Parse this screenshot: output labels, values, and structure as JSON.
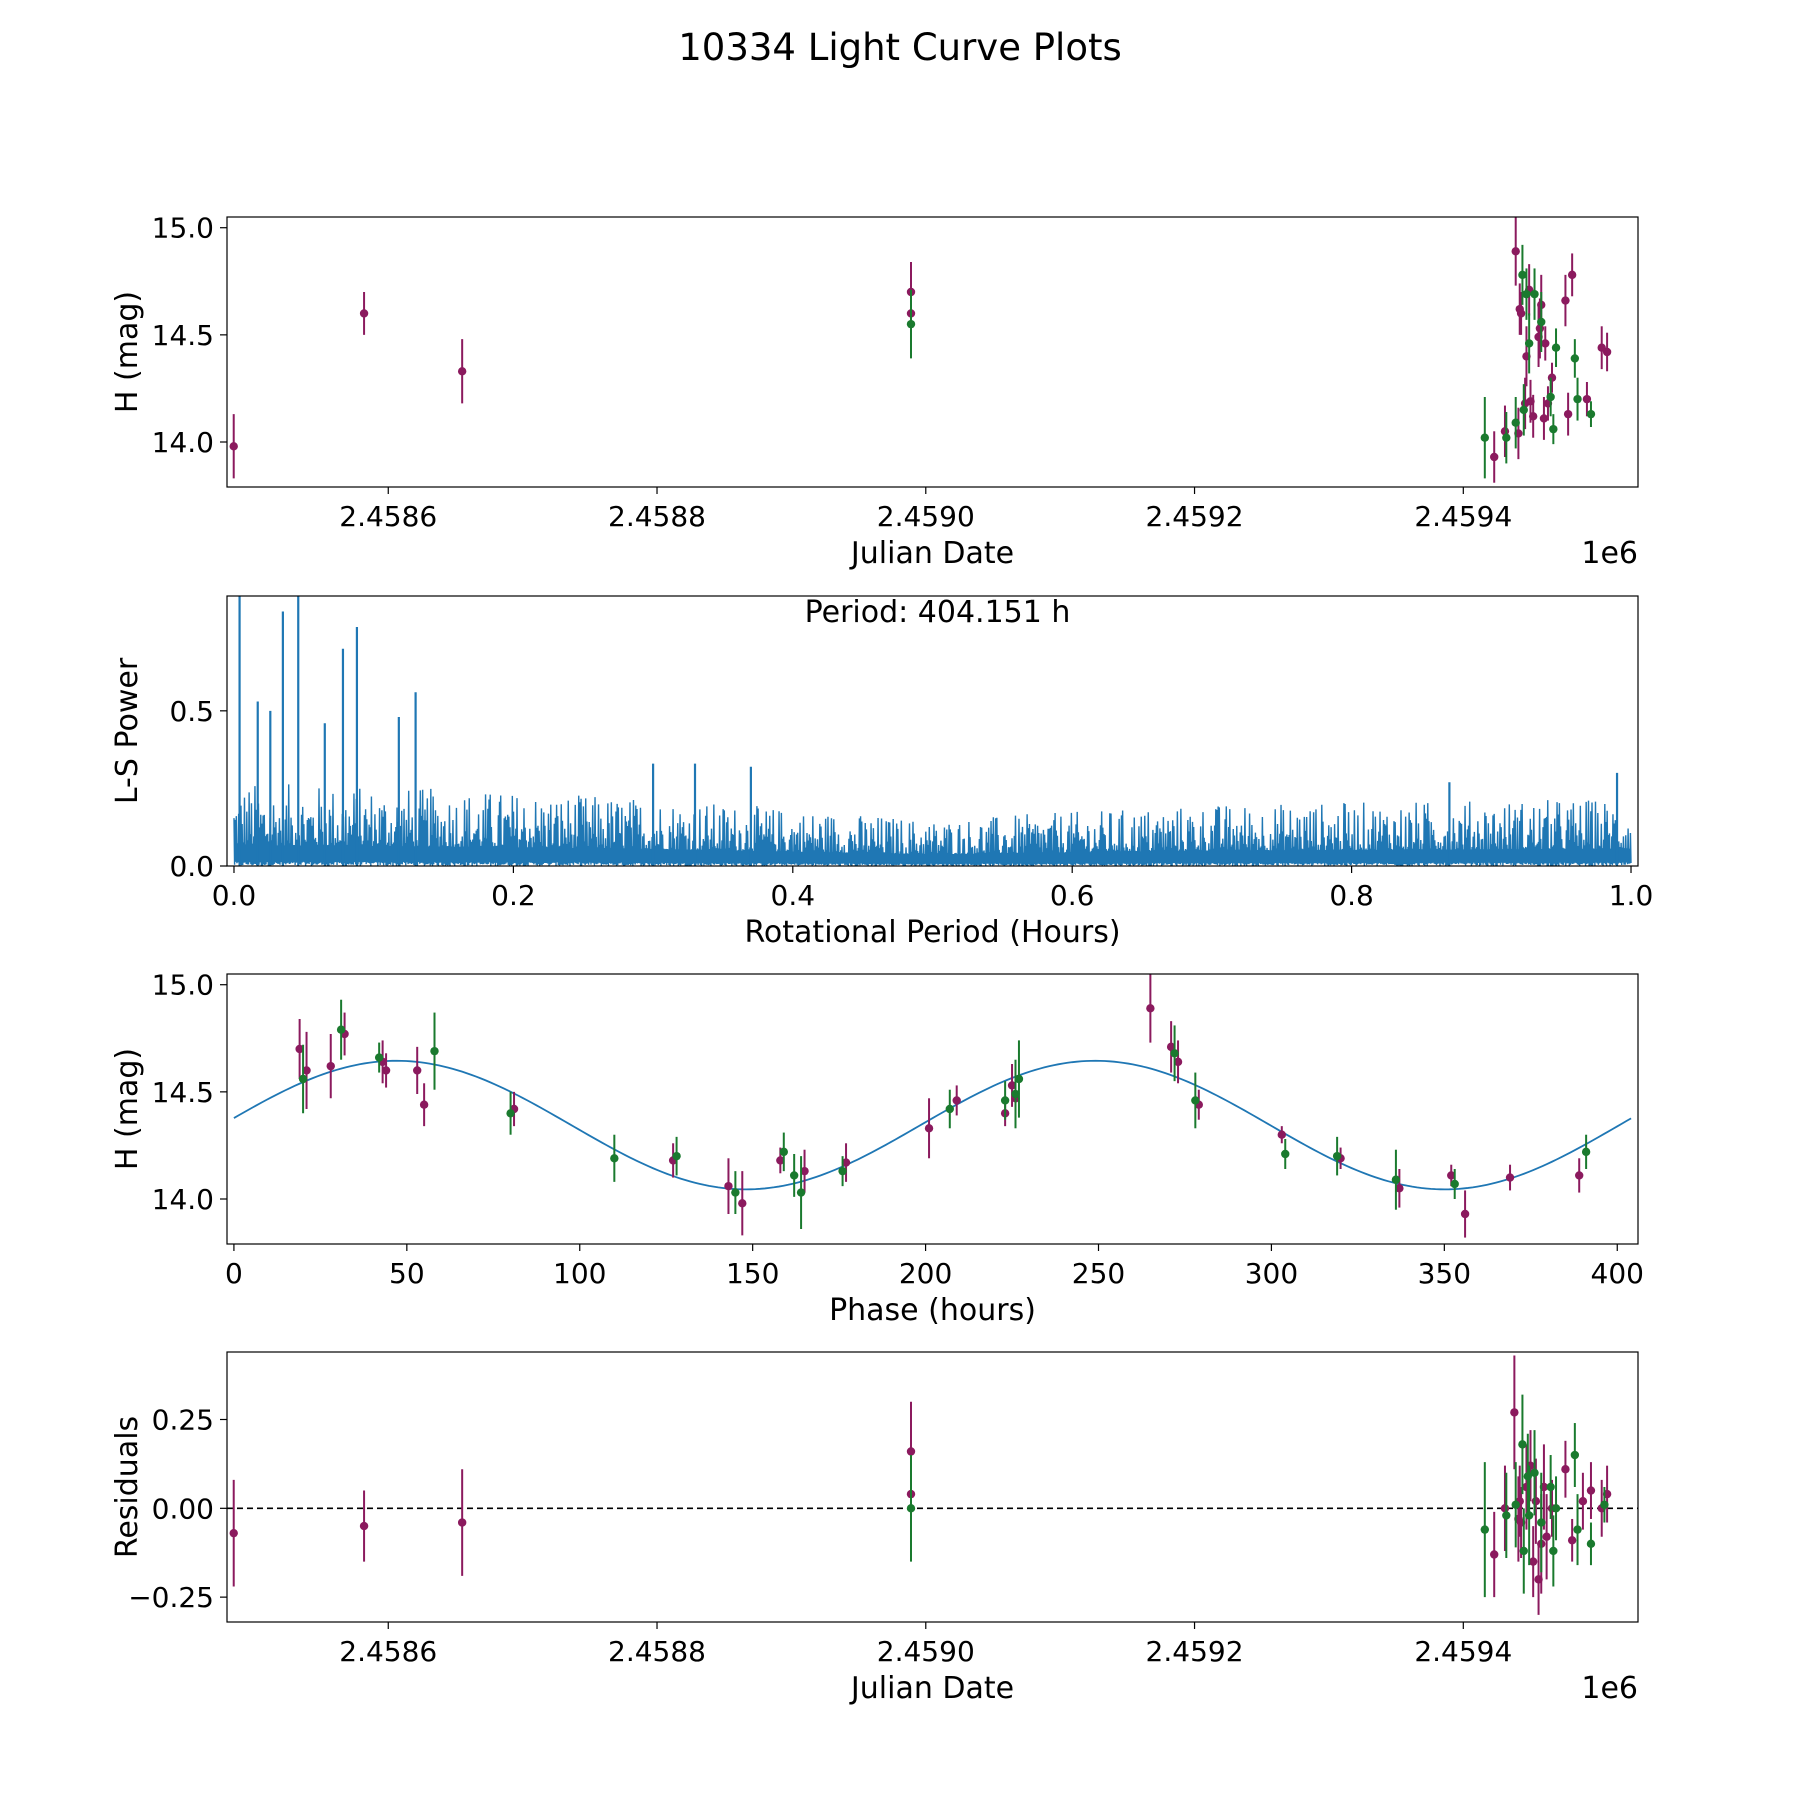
{
  "figure": {
    "title": "10334 Light Curve Plots"
  },
  "colors": {
    "purple": "#8b1a5e",
    "green": "#1a7a2e",
    "line": "#1f77b4",
    "axis": "#000000",
    "zero_line": "#000000"
  },
  "chart_data": [
    {
      "id": "lightcurve",
      "type": "scatter",
      "title": "",
      "xlabel": "Julian Date",
      "ylabel": "H (mag)",
      "x_offset_label": "1e6",
      "xlim": [
        2.45848,
        2.45953
      ],
      "ylim": [
        13.79,
        15.05
      ],
      "xticks": [
        2.4586,
        2.4588,
        2.459,
        2.4592,
        2.4594
      ],
      "xtick_labels": [
        "2.4586",
        "2.4588",
        "2.4590",
        "2.4592",
        "2.4594"
      ],
      "yticks": [
        14.0,
        14.5,
        15.0
      ],
      "ytick_labels": [
        "14.0",
        "14.5",
        "15.0"
      ],
      "series": [
        {
          "name": "purple",
          "color": "purple",
          "x": [
            2.458485,
            2.458582,
            2.458655,
            2.458989,
            2.458989,
            2.459423,
            2.459431,
            2.459439,
            2.459441,
            2.459442,
            2.459443,
            2.459446,
            2.459447,
            2.459449,
            2.45945,
            2.459452,
            2.459456,
            2.459457,
            2.459458,
            2.45946,
            2.459461,
            2.459463,
            2.459466,
            2.459476,
            2.459478,
            2.459481,
            2.459492,
            2.459503,
            2.459507
          ],
          "y": [
            13.98,
            14.6,
            14.33,
            14.7,
            14.6,
            13.93,
            14.05,
            14.89,
            14.04,
            14.62,
            14.6,
            14.18,
            14.4,
            14.71,
            14.19,
            14.12,
            14.49,
            14.53,
            14.64,
            14.11,
            14.46,
            14.18,
            14.3,
            14.66,
            14.13,
            14.78,
            14.2,
            14.44,
            14.42
          ],
          "yerr": [
            0.15,
            0.1,
            0.15,
            0.14,
            0.1,
            0.12,
            0.12,
            0.16,
            0.12,
            0.12,
            0.1,
            0.12,
            0.14,
            0.12,
            0.1,
            0.1,
            0.14,
            0.14,
            0.14,
            0.1,
            0.08,
            0.08,
            0.07,
            0.12,
            0.1,
            0.1,
            0.08,
            0.1,
            0.09
          ]
        },
        {
          "name": "green",
          "color": "green",
          "x": [
            2.458989,
            2.459416,
            2.459432,
            2.459439,
            2.459444,
            2.459445,
            2.459447,
            2.459449,
            2.459453,
            2.459458,
            2.459465,
            2.459467,
            2.459469,
            2.459483,
            2.459485,
            2.459495
          ],
          "y": [
            14.55,
            14.02,
            14.02,
            14.09,
            14.78,
            14.15,
            14.69,
            14.46,
            14.69,
            14.56,
            14.21,
            14.06,
            14.44,
            14.39,
            14.2,
            14.13
          ],
          "yerr": [
            0.16,
            0.19,
            0.12,
            0.12,
            0.14,
            0.12,
            0.12,
            0.14,
            0.12,
            0.14,
            0.09,
            0.07,
            0.09,
            0.09,
            0.1,
            0.06
          ]
        }
      ]
    },
    {
      "id": "periodogram",
      "type": "line",
      "title": "",
      "xlabel": "Rotational Period (Hours)",
      "ylabel": "L-S Power",
      "annotation": "Period: 404.151 h",
      "xlim": [
        -0.005,
        1.005
      ],
      "ylim": [
        0.0,
        0.87
      ],
      "xticks": [
        0.0,
        0.2,
        0.4,
        0.6,
        0.8,
        1.0
      ],
      "xtick_labels": [
        "0.0",
        "0.2",
        "0.4",
        "0.6",
        "0.8",
        "1.0"
      ],
      "yticks": [
        0.0,
        0.5
      ],
      "ytick_labels": [
        "0.0",
        "0.5"
      ],
      "series": [
        {
          "name": "L-S Power",
          "color": "line",
          "x_range": [
            0.0,
            1.0
          ],
          "samples": 2400,
          "envelope": [
            [
              0.0,
              0.27
            ],
            [
              0.15,
              0.25
            ],
            [
              0.3,
              0.22
            ],
            [
              0.5,
              0.15
            ],
            [
              0.7,
              0.2
            ],
            [
              1.0,
              0.22
            ]
          ]
        }
      ],
      "peaks": [
        {
          "x": 0.004,
          "y": 0.87
        },
        {
          "x": 0.035,
          "y": 0.82
        },
        {
          "x": 0.046,
          "y": 0.87
        },
        {
          "x": 0.078,
          "y": 0.7
        },
        {
          "x": 0.088,
          "y": 0.77
        },
        {
          "x": 0.13,
          "y": 0.56
        },
        {
          "x": 0.118,
          "y": 0.48
        },
        {
          "x": 0.026,
          "y": 0.5
        },
        {
          "x": 0.017,
          "y": 0.53
        },
        {
          "x": 0.065,
          "y": 0.46
        },
        {
          "x": 0.3,
          "y": 0.33
        },
        {
          "x": 0.33,
          "y": 0.33
        },
        {
          "x": 0.37,
          "y": 0.32
        },
        {
          "x": 0.99,
          "y": 0.3
        },
        {
          "x": 0.87,
          "y": 0.27
        }
      ]
    },
    {
      "id": "phased",
      "type": "scatter",
      "title": "",
      "xlabel": "Phase (hours)",
      "ylabel": "H (mag)",
      "xlim": [
        -2,
        406
      ],
      "ylim": [
        13.79,
        15.05
      ],
      "xticks": [
        0,
        50,
        100,
        150,
        200,
        250,
        300,
        350,
        400
      ],
      "xtick_labels": [
        "0",
        "50",
        "100",
        "150",
        "200",
        "250",
        "300",
        "350",
        "400"
      ],
      "yticks": [
        14.0,
        14.5,
        15.0
      ],
      "ytick_labels": [
        "14.0",
        "14.5",
        "15.0"
      ],
      "model": {
        "mean": 14.345,
        "amplitude": 0.3,
        "period": 404.151,
        "peak_phase": 47,
        "x_range": [
          0,
          404
        ]
      },
      "series": [
        {
          "name": "purple",
          "color": "purple",
          "x": [
            19,
            21,
            28,
            32,
            43,
            44,
            53,
            55,
            81,
            127,
            143,
            147,
            158,
            165,
            177,
            201,
            209,
            223,
            225,
            226,
            265,
            271,
            273,
            279,
            303,
            320,
            337,
            352,
            356,
            369,
            389
          ],
          "y": [
            14.7,
            14.6,
            14.62,
            14.77,
            14.64,
            14.6,
            14.6,
            14.44,
            14.42,
            14.18,
            14.06,
            13.98,
            14.18,
            14.13,
            14.17,
            14.33,
            14.46,
            14.4,
            14.53,
            14.47,
            14.89,
            14.71,
            14.64,
            14.44,
            14.3,
            14.19,
            14.05,
            14.11,
            13.93,
            14.1,
            14.11
          ],
          "yerr": [
            0.14,
            0.18,
            0.15,
            0.1,
            0.1,
            0.08,
            0.11,
            0.1,
            0.08,
            0.08,
            0.13,
            0.15,
            0.06,
            0.1,
            0.09,
            0.14,
            0.07,
            0.06,
            0.1,
            0.12,
            0.16,
            0.12,
            0.1,
            0.07,
            0.04,
            0.05,
            0.09,
            0.05,
            0.11,
            0.06,
            0.08
          ]
        },
        {
          "name": "green",
          "color": "green",
          "x": [
            20,
            31,
            42,
            58,
            80,
            110,
            128,
            145,
            159,
            162,
            164,
            176,
            207,
            223,
            226,
            227,
            272,
            278,
            304,
            319,
            336,
            353,
            391
          ],
          "y": [
            14.56,
            14.79,
            14.66,
            14.69,
            14.4,
            14.19,
            14.2,
            14.03,
            14.22,
            14.11,
            14.03,
            14.13,
            14.42,
            14.46,
            14.49,
            14.56,
            14.68,
            14.46,
            14.21,
            14.2,
            14.09,
            14.07,
            14.22
          ],
          "yerr": [
            0.16,
            0.14,
            0.07,
            0.18,
            0.1,
            0.11,
            0.09,
            0.1,
            0.09,
            0.1,
            0.17,
            0.07,
            0.09,
            0.09,
            0.16,
            0.18,
            0.13,
            0.13,
            0.07,
            0.09,
            0.14,
            0.07,
            0.08
          ]
        }
      ]
    },
    {
      "id": "residuals",
      "type": "scatter",
      "title": "",
      "xlabel": "Julian Date",
      "ylabel": "Residuals",
      "x_offset_label": "1e6",
      "xlim": [
        2.45848,
        2.45953
      ],
      "ylim": [
        -0.32,
        0.44
      ],
      "xticks": [
        2.4586,
        2.4588,
        2.459,
        2.4592,
        2.4594
      ],
      "xtick_labels": [
        "2.4586",
        "2.4588",
        "2.4590",
        "2.4592",
        "2.4594"
      ],
      "yticks": [
        -0.25,
        0.0,
        0.25
      ],
      "ytick_labels": [
        "−0.25",
        "0.00",
        "0.25"
      ],
      "zero_line": true,
      "series": [
        {
          "name": "purple",
          "color": "purple",
          "x": [
            2.458485,
            2.458582,
            2.458655,
            2.458989,
            2.458989,
            2.459423,
            2.459431,
            2.459438,
            2.459441,
            2.459442,
            2.459443,
            2.459447,
            2.45945,
            2.459452,
            2.459454,
            2.459456,
            2.459458,
            2.45946,
            2.459462,
            2.459466,
            2.459476,
            2.459481,
            2.459489,
            2.459495,
            2.459503,
            2.459507
          ],
          "y": [
            -0.07,
            -0.05,
            -0.04,
            0.16,
            0.04,
            -0.13,
            0.0,
            0.27,
            -0.03,
            0.02,
            -0.04,
            0.06,
            0.12,
            -0.15,
            0.02,
            -0.2,
            -0.1,
            0.06,
            -0.08,
            0.0,
            0.11,
            -0.09,
            0.02,
            0.05,
            0.0,
            0.04
          ],
          "yerr": [
            0.15,
            0.1,
            0.15,
            0.14,
            0.1,
            0.12,
            0.12,
            0.16,
            0.12,
            0.1,
            0.1,
            0.12,
            0.1,
            0.1,
            0.12,
            0.1,
            0.14,
            0.12,
            0.12,
            0.08,
            0.08,
            0.06,
            0.08,
            0.08,
            0.08,
            0.08
          ]
        },
        {
          "name": "green",
          "color": "green",
          "x": [
            2.458989,
            2.459416,
            2.459432,
            2.459439,
            2.459444,
            2.459445,
            2.459448,
            2.459449,
            2.459453,
            2.459458,
            2.459465,
            2.459467,
            2.459469,
            2.459483,
            2.459485,
            2.459495,
            2.459505
          ],
          "y": [
            0.0,
            -0.06,
            -0.02,
            0.01,
            0.18,
            -0.12,
            0.09,
            -0.02,
            0.1,
            -0.04,
            0.06,
            -0.12,
            0.0,
            0.15,
            -0.06,
            -0.1,
            0.01
          ],
          "yerr": [
            0.15,
            0.19,
            0.12,
            0.12,
            0.14,
            0.12,
            0.12,
            0.14,
            0.12,
            0.14,
            0.09,
            0.1,
            0.09,
            0.09,
            0.1,
            0.06,
            0.05
          ]
        }
      ]
    }
  ]
}
